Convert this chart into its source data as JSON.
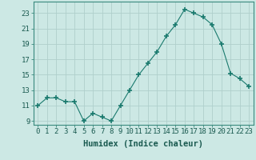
{
  "x": [
    0,
    1,
    2,
    3,
    4,
    5,
    6,
    7,
    8,
    9,
    10,
    11,
    12,
    13,
    14,
    15,
    16,
    17,
    18,
    19,
    20,
    21,
    22,
    23
  ],
  "y": [
    11,
    12,
    12,
    11.5,
    11.5,
    9,
    10,
    9.5,
    9,
    11,
    13,
    15,
    16.5,
    18,
    20,
    21.5,
    23.5,
    23,
    22.5,
    21.5,
    19,
    15.2,
    14.5,
    13.5
  ],
  "line_color": "#1a7a6e",
  "marker_color": "#1a7a6e",
  "bg_color": "#cce8e4",
  "grid_color": "#b0cfcc",
  "xlabel": "Humidex (Indice chaleur)",
  "xlim": [
    -0.5,
    23.5
  ],
  "ylim": [
    8.5,
    24.5
  ],
  "yticks": [
    9,
    11,
    13,
    15,
    17,
    19,
    21,
    23
  ],
  "xticks": [
    0,
    1,
    2,
    3,
    4,
    5,
    6,
    7,
    8,
    9,
    10,
    11,
    12,
    13,
    14,
    15,
    16,
    17,
    18,
    19,
    20,
    21,
    22,
    23
  ],
  "xtick_labels": [
    "0",
    "1",
    "2",
    "3",
    "4",
    "5",
    "6",
    "7",
    "8",
    "9",
    "10",
    "11",
    "12",
    "13",
    "14",
    "15",
    "16",
    "17",
    "18",
    "19",
    "20",
    "21",
    "22",
    "23"
  ],
  "xlabel_fontsize": 7.5,
  "tick_fontsize": 6.5
}
